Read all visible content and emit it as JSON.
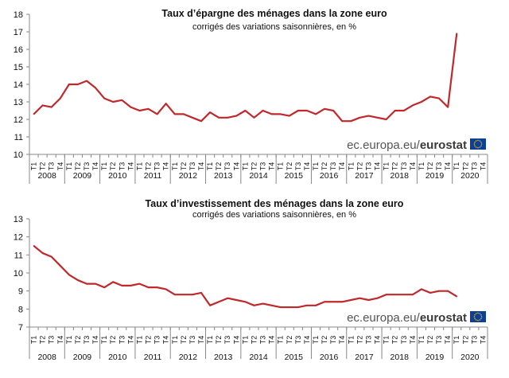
{
  "chart_data": [
    {
      "type": "line",
      "title": "Taux d’épargne des ménages dans la zone euro",
      "subtitle": "corrigés des variations saisonnières, en %",
      "ylim": [
        10,
        18
      ],
      "yticks": [
        10,
        11,
        12,
        13,
        14,
        15,
        16,
        17,
        18
      ],
      "quarter_labels": [
        "T1",
        "T2",
        "T3",
        "T4"
      ],
      "years": [
        "2008",
        "2009",
        "2010",
        "2011",
        "2012",
        "2013",
        "2014",
        "2015",
        "2016",
        "2017",
        "2018",
        "2019",
        "2020"
      ],
      "legend": "none",
      "grid": false,
      "series": [
        {
          "color": "#c0282b",
          "values": [
            12.3,
            12.8,
            12.7,
            13.2,
            14.0,
            14.0,
            14.2,
            13.8,
            13.2,
            13.0,
            13.1,
            12.7,
            12.5,
            12.6,
            12.3,
            12.9,
            12.3,
            12.3,
            12.1,
            11.9,
            12.4,
            12.1,
            12.1,
            12.2,
            12.5,
            12.1,
            12.5,
            12.3,
            12.3,
            12.2,
            12.5,
            12.5,
            12.3,
            12.6,
            12.5,
            11.9,
            11.9,
            12.1,
            12.2,
            12.1,
            12.0,
            12.5,
            12.5,
            12.8,
            13.0,
            13.3,
            13.2,
            12.7,
            16.9
          ]
        }
      ]
    },
    {
      "type": "line",
      "title": "Taux d’investissement des ménages dans la zone euro",
      "subtitle": "corrigés des variations saisonnières, en %",
      "ylim": [
        7,
        13
      ],
      "yticks": [
        7,
        8,
        9,
        10,
        11,
        12,
        13
      ],
      "quarter_labels": [
        "T1",
        "T2",
        "T3",
        "T4"
      ],
      "years": [
        "2008",
        "2009",
        "2010",
        "2011",
        "2012",
        "2013",
        "2014",
        "2015",
        "2016",
        "2017",
        "2018",
        "2019",
        "2020"
      ],
      "legend": "none",
      "grid": false,
      "series": [
        {
          "color": "#c0282b",
          "values": [
            11.5,
            11.1,
            10.9,
            10.4,
            9.9,
            9.6,
            9.4,
            9.4,
            9.2,
            9.5,
            9.3,
            9.3,
            9.4,
            9.2,
            9.2,
            9.1,
            8.8,
            8.8,
            8.8,
            8.9,
            8.2,
            8.4,
            8.6,
            8.5,
            8.4,
            8.2,
            8.3,
            8.2,
            8.1,
            8.1,
            8.1,
            8.2,
            8.2,
            8.4,
            8.4,
            8.4,
            8.5,
            8.6,
            8.5,
            8.6,
            8.8,
            8.8,
            8.8,
            8.8,
            9.1,
            8.9,
            9.0,
            9.0,
            8.7
          ]
        }
      ]
    }
  ],
  "source": {
    "text_regular": "ec.europa.eu/",
    "text_bold": "eurostat",
    "flag_color": "#0b3f9a",
    "star_color": "#ffcc00"
  }
}
